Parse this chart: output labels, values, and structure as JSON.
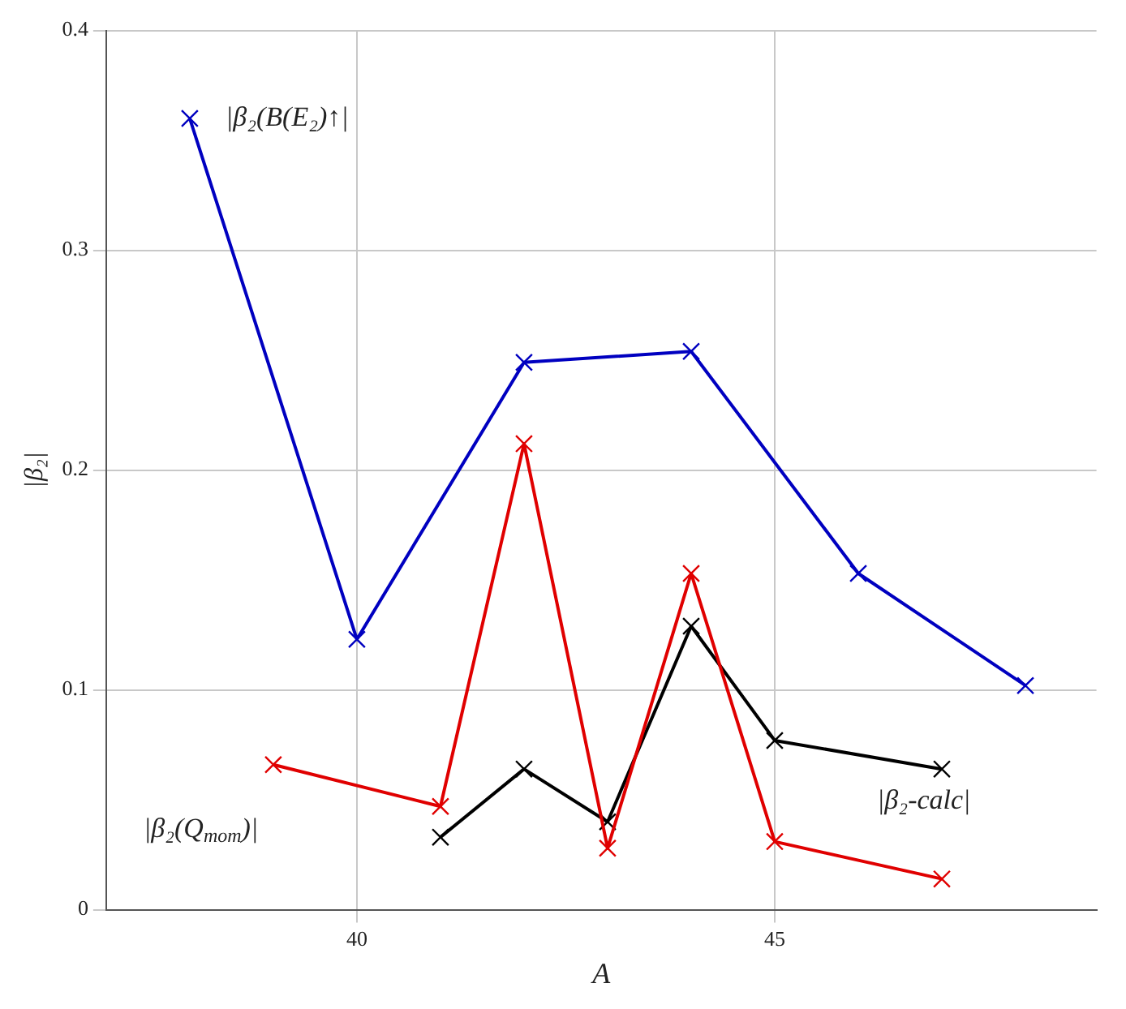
{
  "chart_data": {
    "type": "line",
    "xlabel": "A",
    "ylabel": "|β₂|",
    "xlim": [
      37,
      48.85
    ],
    "xticks": [
      40,
      45
    ],
    "ylim": [
      0,
      0.4
    ],
    "yticks": [
      0,
      0.1,
      0.2,
      0.3,
      0.4
    ],
    "grid": true,
    "marker": "cross",
    "line_style": "solid",
    "legend": false,
    "series": [
      {
        "name": "|β₂(B(E₂)↑|",
        "color": "#0000c0",
        "x": [
          38,
          40,
          42,
          44,
          46,
          48
        ],
        "values": [
          0.36,
          0.123,
          0.249,
          0.254,
          0.153,
          0.102
        ]
      },
      {
        "name": "|β₂(Q$_{mom}$)|",
        "color": "#e00000",
        "x": [
          39,
          41,
          42,
          43,
          44,
          45,
          47
        ],
        "values": [
          0.066,
          0.047,
          0.212,
          0.028,
          0.153,
          0.031,
          0.014
        ]
      },
      {
        "name": "|β₂-calc|",
        "color": "#000000",
        "x": [
          41,
          42,
          43,
          44,
          45,
          47
        ],
        "values": [
          0.033,
          0.064,
          0.04,
          0.129,
          0.077,
          0.064
        ]
      }
    ]
  }
}
